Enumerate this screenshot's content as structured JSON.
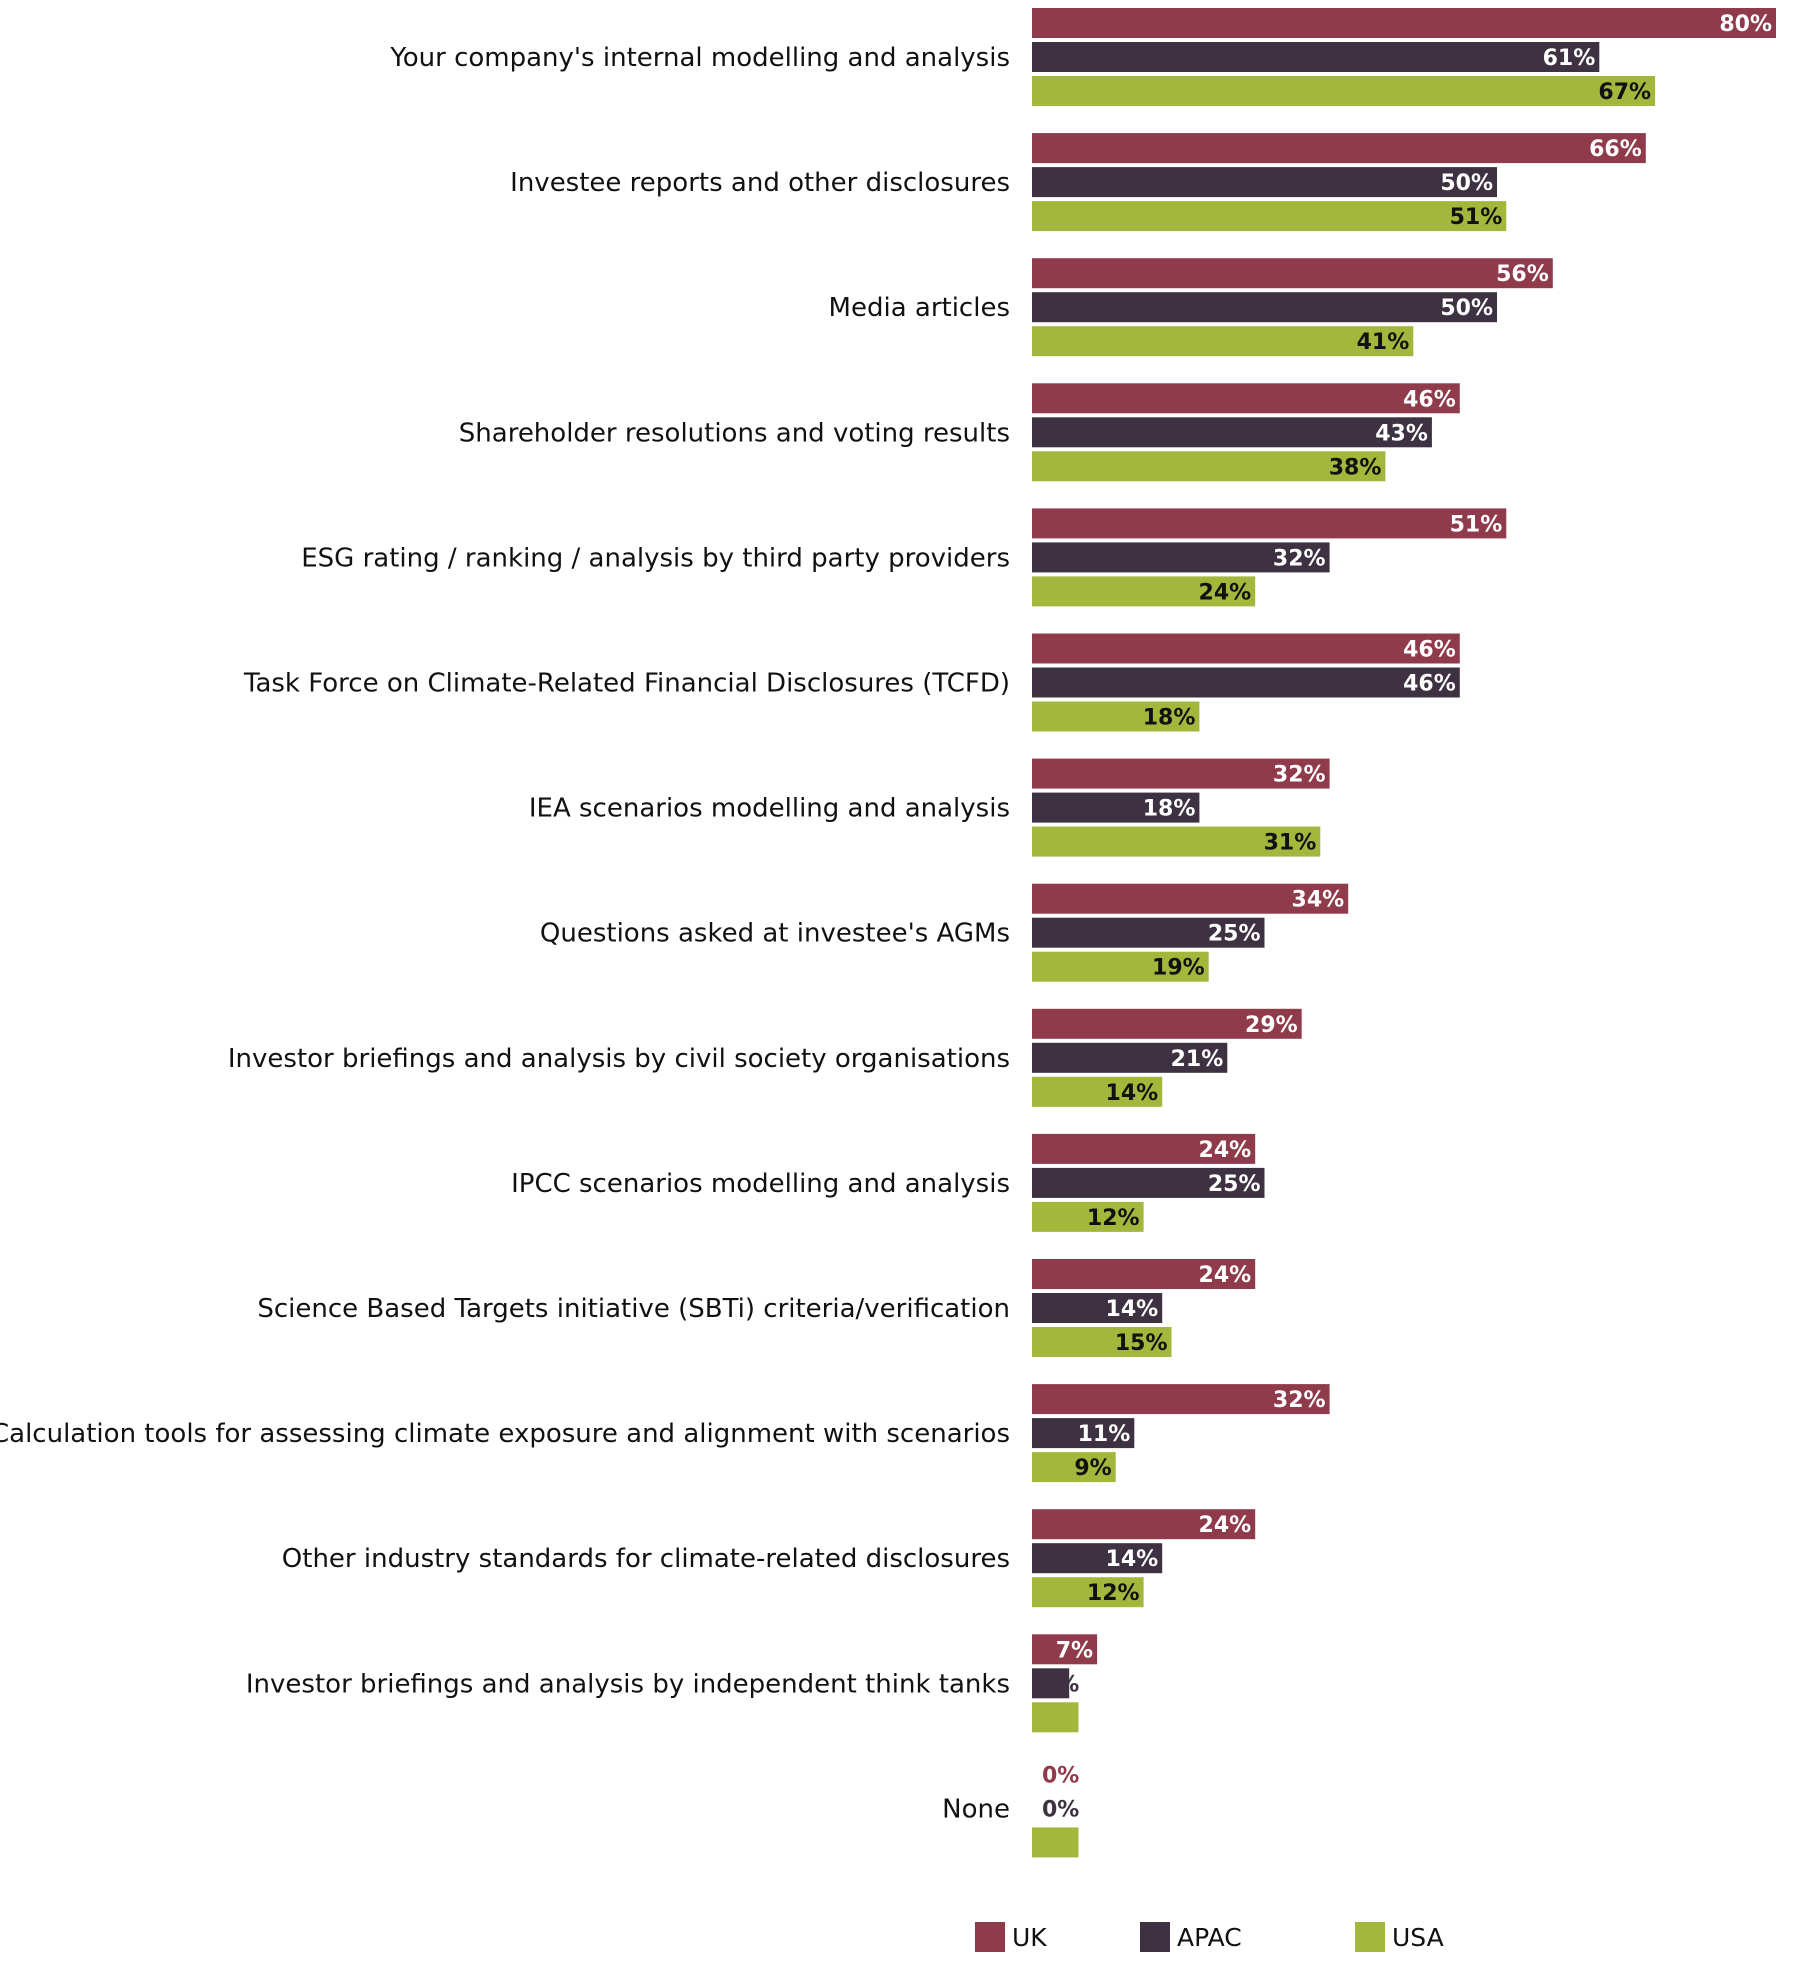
{
  "chart_data": {
    "type": "bar",
    "orientation": "horizontal",
    "title": "",
    "xlabel": "",
    "ylabel": "",
    "xlim": [
      0,
      100
    ],
    "grid": false,
    "legend_position": "bottom",
    "value_suffix": "%",
    "categories": [
      "Your company's internal modelling and analysis",
      "Investee reports and other disclosures",
      "Media articles",
      "Shareholder resolutions and voting results",
      "ESG rating / ranking / analysis by third party providers",
      "Task Force on Climate-Related Financial Disclosures (TCFD)",
      "IEA scenarios modelling and analysis",
      "Questions asked at investee's AGMs",
      "Investor briefings and analysis by civil society organisations",
      "IPCC scenarios modelling and analysis",
      "Science Based Targets initiative (SBTi) criteria/verification",
      "Calculation tools for assessing climate exposure and alignment with scenarios",
      "Other industry standards for climate-related disclosures",
      "Investor briefings and analysis by independent think tanks",
      "None"
    ],
    "series": [
      {
        "name": "UK",
        "color": "#8f3b4c",
        "label_color": "#ffffff",
        "values": [
          80,
          66,
          56,
          46,
          51,
          46,
          32,
          34,
          29,
          24,
          24,
          32,
          24,
          7,
          0
        ]
      },
      {
        "name": "APAC",
        "color": "#3e3141",
        "label_color": "#ffffff",
        "values": [
          61,
          50,
          50,
          43,
          32,
          46,
          18,
          25,
          21,
          25,
          14,
          11,
          14,
          4,
          0
        ]
      },
      {
        "name": "USA",
        "color": "#a2b73c",
        "label_color": "#111111",
        "values": [
          67,
          51,
          41,
          38,
          24,
          18,
          31,
          19,
          14,
          12,
          15,
          9,
          12,
          5,
          5
        ]
      }
    ]
  }
}
